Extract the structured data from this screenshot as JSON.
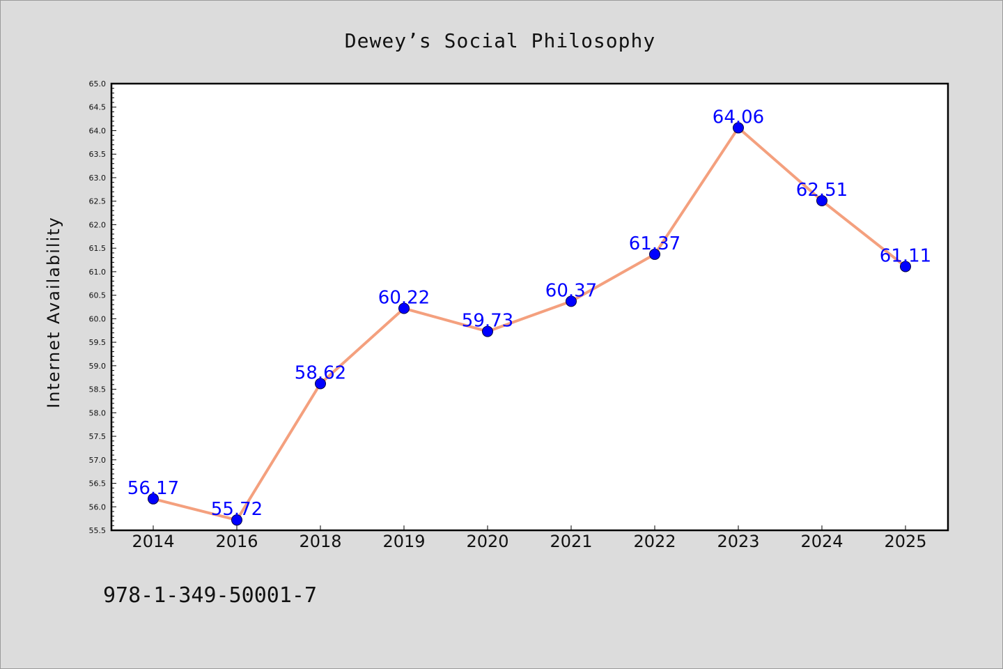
{
  "chart_data": {
    "type": "line",
    "title": "Dewey’s Social Philosophy",
    "xlabel": "",
    "ylabel": "Internet Availability",
    "categories": [
      "2014",
      "2016",
      "2018",
      "2019",
      "2020",
      "2021",
      "2022",
      "2023",
      "2024",
      "2025"
    ],
    "series": [
      {
        "values": [
          56.17,
          55.72,
          58.62,
          60.22,
          59.73,
          60.37,
          61.37,
          64.06,
          62.51,
          61.11
        ]
      }
    ],
    "data_labels": [
      "56.17",
      "55.72",
      "58.62",
      "60.22",
      "59.73",
      "60.37",
      "61.37",
      "64.06",
      "62.51",
      "61.11"
    ],
    "ylim": [
      55.5,
      65.0
    ],
    "ytick_step": 0.5,
    "grid": false,
    "line_color": "#f4a07e",
    "marker_color": "#0000ff",
    "label_color": "#0000ff"
  },
  "footer": {
    "isbn": "978-1-349-50001-7"
  }
}
